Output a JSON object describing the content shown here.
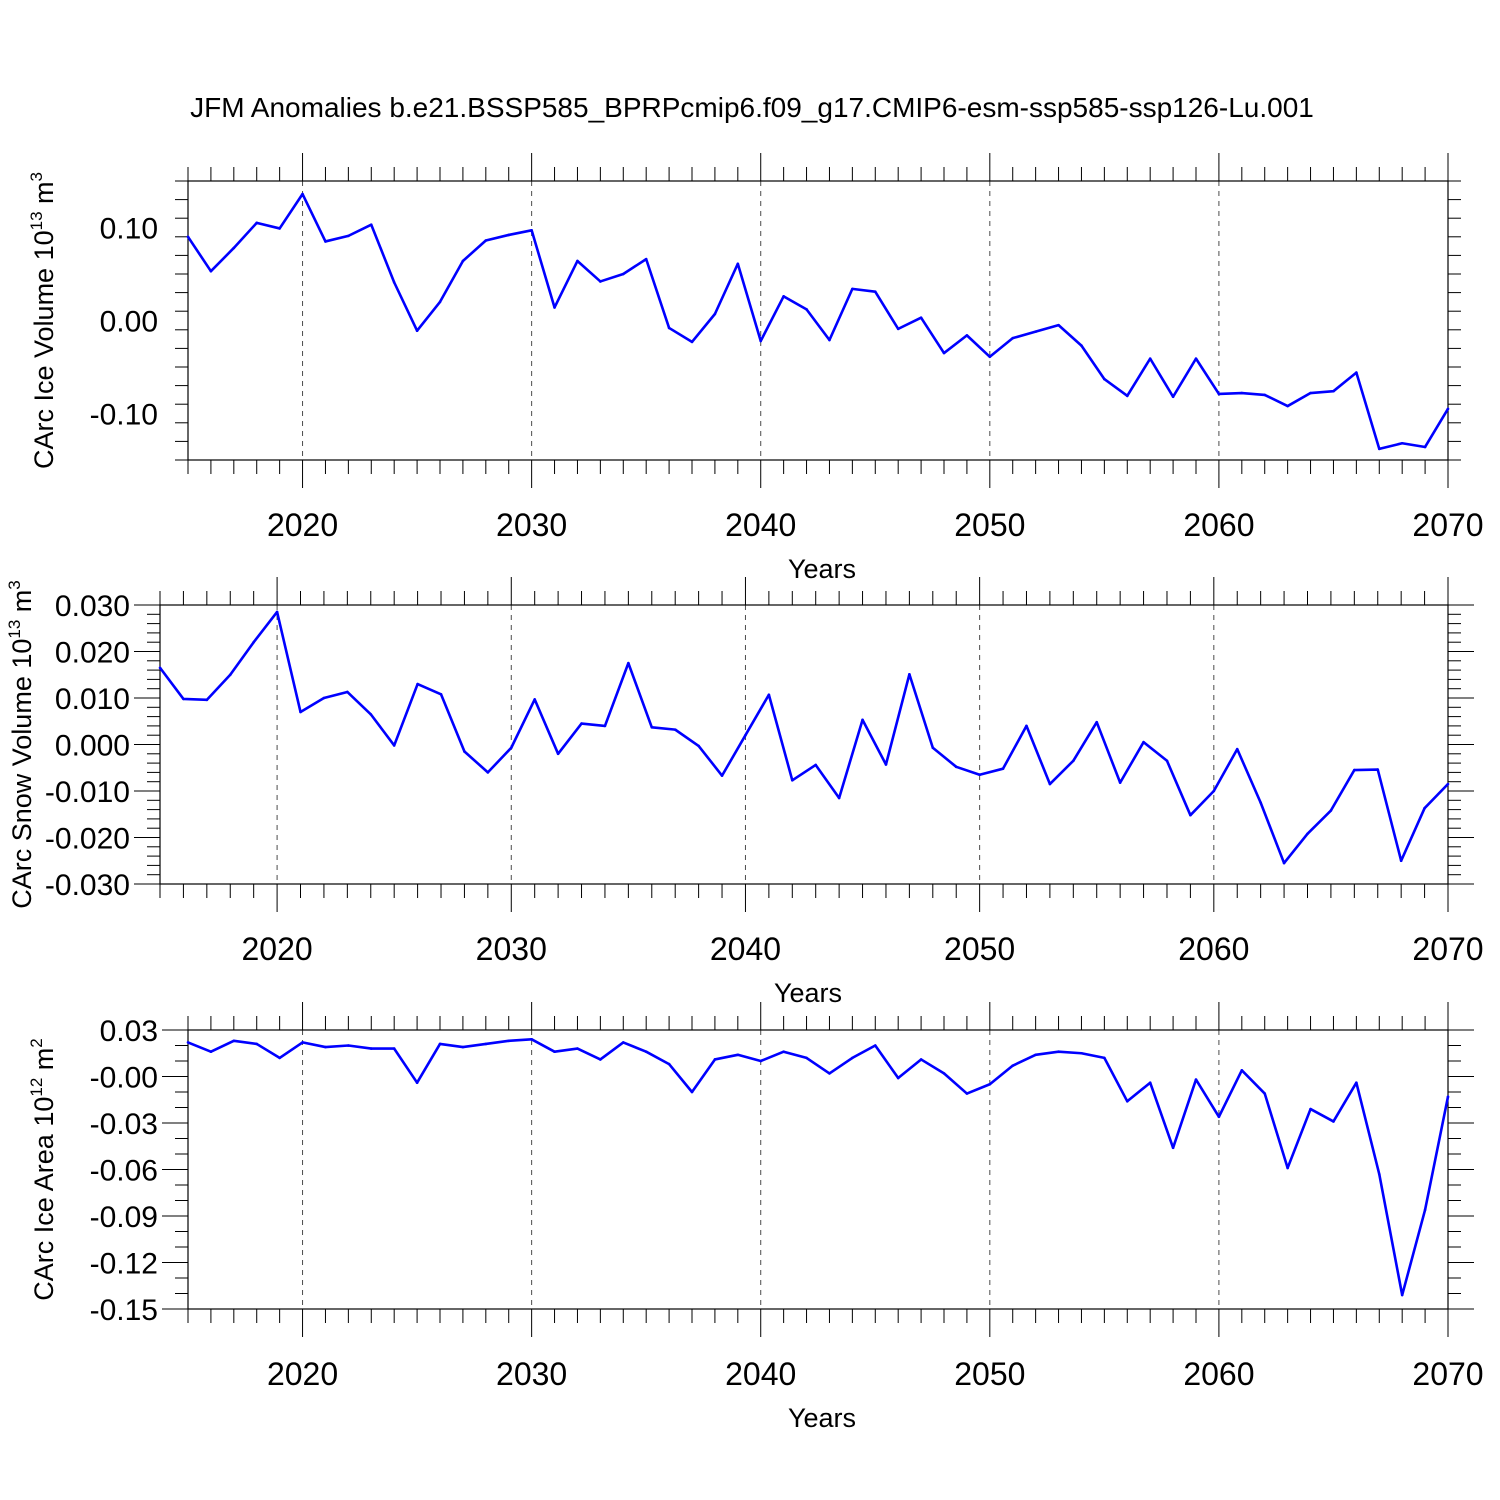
{
  "title": "JFM Anomalies b.e21.BSSP585_BPRPcmip6.f09_g17.CMIP6-esm-ssp585-ssp126-Lu.001",
  "chart_data": [
    {
      "type": "line",
      "title": "",
      "xlabel": "Years",
      "ylabel": "CArc Ice Volume 10",
      "ylabel_exp": "13",
      "ylabel_unit": " m",
      "ylabel_unit_exp": "3",
      "xlim": [
        2015,
        2070
      ],
      "ylim": [
        -0.15,
        0.15
      ],
      "xticks": [
        2020,
        2030,
        2040,
        2050,
        2060,
        2070
      ],
      "xtick_labels": [
        "2020",
        "2030",
        "2040",
        "2050",
        "2060",
        "2070"
      ],
      "yticks": [
        -0.1,
        0.0,
        0.1
      ],
      "ytick_labels": [
        "-0.10",
        "0.00",
        "0.10"
      ],
      "y_minor_step": 0.02,
      "grid_x": true,
      "series": [
        {
          "name": "CArc Ice Volume",
          "color": "#0000ff",
          "x": [
            2015,
            2016,
            2017,
            2018,
            2019,
            2020,
            2021,
            2022,
            2023,
            2024,
            2025,
            2026,
            2027,
            2028,
            2029,
            2030,
            2031,
            2032,
            2033,
            2034,
            2035,
            2036,
            2037,
            2038,
            2039,
            2040,
            2041,
            2042,
            2043,
            2044,
            2045,
            2046,
            2047,
            2048,
            2049,
            2050,
            2051,
            2052,
            2053,
            2054,
            2055,
            2056,
            2057,
            2058,
            2059,
            2060,
            2061,
            2062,
            2063,
            2064,
            2065,
            2066,
            2067,
            2068,
            2069,
            2070
          ],
          "values": [
            0.09,
            0.053,
            0.078,
            0.105,
            0.099,
            0.136,
            0.085,
            0.091,
            0.103,
            0.041,
            -0.011,
            0.02,
            0.064,
            0.086,
            0.092,
            0.097,
            0.014,
            0.064,
            0.042,
            0.05,
            0.066,
            -0.008,
            -0.023,
            0.007,
            0.061,
            -0.022,
            0.026,
            0.012,
            -0.021,
            0.034,
            0.031,
            -0.009,
            0.003,
            -0.035,
            -0.016,
            -0.039,
            -0.019,
            -0.012,
            -0.005,
            -0.027,
            -0.063,
            -0.081,
            -0.041,
            -0.082,
            -0.041,
            -0.079,
            -0.078,
            -0.08,
            -0.092,
            -0.078,
            -0.076,
            -0.056,
            -0.138,
            -0.132,
            -0.136,
            -0.095
          ]
        }
      ]
    },
    {
      "type": "line",
      "title": "",
      "xlabel": "Years",
      "ylabel": "CArc Snow Volume 10",
      "ylabel_exp": "13",
      "ylabel_unit": " m",
      "ylabel_unit_exp": "3",
      "xlim": [
        2015,
        2070
      ],
      "ylim": [
        -0.03,
        0.03
      ],
      "xticks": [
        2020,
        2030,
        2040,
        2050,
        2060,
        2070
      ],
      "xtick_labels": [
        "2020",
        "2030",
        "2040",
        "2050",
        "2060",
        "2070"
      ],
      "yticks": [
        -0.03,
        -0.02,
        -0.01,
        0.0,
        0.01,
        0.02,
        0.03
      ],
      "ytick_labels": [
        "-0.030",
        "-0.020",
        "-0.010",
        "0.000",
        "0.010",
        "0.020",
        "0.030"
      ],
      "y_minor_step": 0.002,
      "grid_x": true,
      "series": [
        {
          "name": "CArc Snow Volume",
          "color": "#0000ff",
          "x": [
            2015,
            2016,
            2017,
            2018,
            2019,
            2020,
            2021,
            2022,
            2023,
            2024,
            2025,
            2026,
            2027,
            2028,
            2029,
            2030,
            2031,
            2032,
            2033,
            2034,
            2035,
            2036,
            2037,
            2038,
            2039,
            2040,
            2041,
            2042,
            2043,
            2044,
            2045,
            2046,
            2047,
            2048,
            2049,
            2050,
            2051,
            2052,
            2053,
            2054,
            2055,
            2056,
            2057,
            2058,
            2059,
            2060,
            2061,
            2062,
            2063,
            2064,
            2065,
            2066,
            2067,
            2068,
            2069,
            2070
          ],
          "values": [
            0.0165,
            0.0098,
            0.0096,
            0.015,
            0.022,
            0.0285,
            0.007,
            0.01,
            0.0113,
            0.0065,
            -0.0002,
            0.013,
            0.0108,
            -0.0015,
            -0.006,
            -0.0007,
            0.0097,
            -0.002,
            0.0045,
            0.004,
            0.0175,
            0.0037,
            0.0032,
            -0.0003,
            -0.0067,
            0.002,
            0.0107,
            -0.0077,
            -0.0044,
            -0.0115,
            0.0053,
            -0.0043,
            0.0151,
            -0.0007,
            -0.0048,
            -0.0065,
            -0.0052,
            0.004,
            -0.0085,
            -0.0035,
            0.0048,
            -0.0082,
            0.0005,
            -0.0035,
            -0.0152,
            -0.01,
            -0.001,
            -0.0125,
            -0.0255,
            -0.0192,
            -0.0142,
            -0.0055,
            -0.0054,
            -0.025,
            -0.0137,
            -0.0085
          ]
        }
      ]
    },
    {
      "type": "line",
      "title": "",
      "xlabel": "Years",
      "ylabel": "CArc Ice Area 10",
      "ylabel_exp": "12",
      "ylabel_unit": " m",
      "ylabel_unit_exp": "2",
      "xlim": [
        2015,
        2070
      ],
      "ylim": [
        -0.15,
        0.03
      ],
      "xticks": [
        2020,
        2030,
        2040,
        2050,
        2060,
        2070
      ],
      "xtick_labels": [
        "2020",
        "2030",
        "2040",
        "2050",
        "2060",
        "2070"
      ],
      "yticks": [
        -0.15,
        -0.12,
        -0.09,
        -0.06,
        -0.03,
        0.0,
        0.03
      ],
      "ytick_labels": [
        "-0.15",
        "-0.12",
        "-0.09",
        "-0.06",
        "-0.03",
        "-0.00",
        "0.03"
      ],
      "y_minor_step": 0.01,
      "grid_x": true,
      "series": [
        {
          "name": "CArc Ice Area",
          "color": "#0000ff",
          "x": [
            2015,
            2016,
            2017,
            2018,
            2019,
            2020,
            2021,
            2022,
            2023,
            2024,
            2025,
            2026,
            2027,
            2028,
            2029,
            2030,
            2031,
            2032,
            2033,
            2034,
            2035,
            2036,
            2037,
            2038,
            2039,
            2040,
            2041,
            2042,
            2043,
            2044,
            2045,
            2046,
            2047,
            2048,
            2049,
            2050,
            2051,
            2052,
            2053,
            2054,
            2055,
            2056,
            2057,
            2058,
            2059,
            2060,
            2061,
            2062,
            2063,
            2064,
            2065,
            2066,
            2067,
            2068,
            2069,
            2070
          ],
          "values": [
            0.022,
            0.016,
            0.023,
            0.021,
            0.012,
            0.022,
            0.019,
            0.02,
            0.018,
            0.018,
            -0.004,
            0.021,
            0.019,
            0.021,
            0.023,
            0.024,
            0.016,
            0.018,
            0.011,
            0.022,
            0.016,
            0.008,
            -0.01,
            0.011,
            0.014,
            0.01,
            0.016,
            0.012,
            0.002,
            0.012,
            0.02,
            -0.001,
            0.011,
            0.002,
            -0.011,
            -0.005,
            0.007,
            0.014,
            0.016,
            0.015,
            0.012,
            -0.016,
            -0.004,
            -0.046,
            -0.002,
            -0.026,
            0.004,
            -0.011,
            -0.059,
            -0.021,
            -0.029,
            -0.004,
            -0.063,
            -0.141,
            -0.086,
            -0.013
          ]
        }
      ]
    }
  ]
}
